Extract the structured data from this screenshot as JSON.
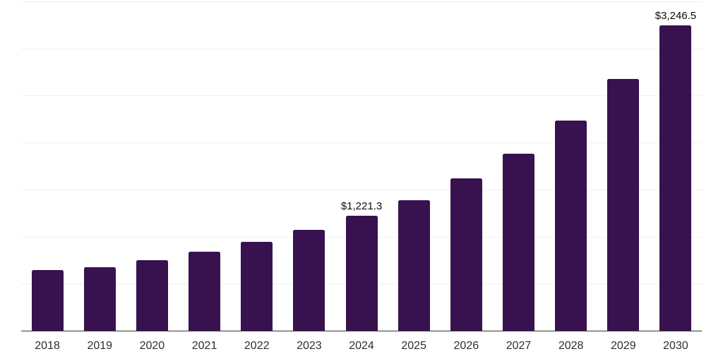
{
  "chart_data": {
    "type": "bar",
    "title": "",
    "xlabel": "",
    "ylabel": "",
    "categories": [
      "2018",
      "2019",
      "2020",
      "2021",
      "2022",
      "2023",
      "2024",
      "2025",
      "2026",
      "2027",
      "2028",
      "2029",
      "2030"
    ],
    "values": [
      645,
      675,
      750,
      843,
      948,
      1072,
      1221.3,
      1390,
      1620,
      1883,
      2231,
      2672,
      3246.5
    ],
    "values_note": "only 2024 and 2030 carry printed labels; other values estimated from bar heights",
    "data_labels": {
      "2024": "$1,221.3",
      "2030": "$3,246.5"
    },
    "ylim": [
      0,
      3500
    ],
    "y_gridline_step": 500,
    "y_tick_labels_visible": false,
    "grid": "horizontal",
    "legend": "none",
    "bar_color": "#38124F",
    "gridline_color": "#F0F0F0",
    "axis_line_color": "#333333",
    "tick_label_color": "#2E2E2E",
    "value_label_color": "#0D0D0D",
    "background_color": "#FFFFFF"
  }
}
